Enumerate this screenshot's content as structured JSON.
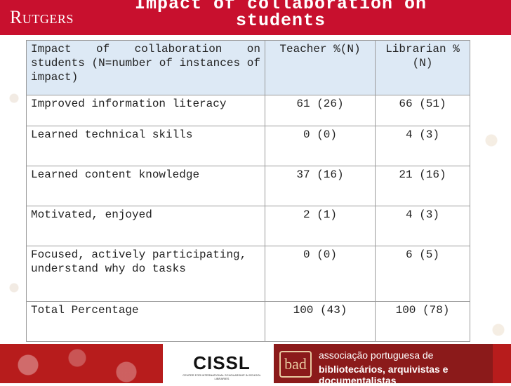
{
  "header": {
    "logo_text": "Rutgers",
    "title": "Impact of collaboration on students"
  },
  "table": {
    "headers": [
      "Impact of collaboration on students (N=number of instances of impact)",
      "Teacher %(N)",
      "Librarian %(N)"
    ],
    "rows": [
      {
        "impact": "Improved information literacy",
        "teacher": "61 (26)",
        "librarian": "66 (51)"
      },
      {
        "impact": "Learned technical skills",
        "teacher": "0 (0)",
        "librarian": "4 (3)"
      },
      {
        "impact": "Learned content knowledge",
        "teacher": "37 (16)",
        "librarian": "21 (16)"
      },
      {
        "impact": "Motivated, enjoyed",
        "teacher": "2 (1)",
        "librarian": "4 (3)"
      },
      {
        "impact": "Focused, actively participating, understand why do tasks",
        "teacher": "0 (0)",
        "librarian": "6 (5)"
      },
      {
        "impact": "Total Percentage",
        "teacher": "100 (43)",
        "librarian": "100 (78)"
      }
    ]
  },
  "footer": {
    "cissl_logo": "CISSL",
    "cissl_subtitle": "CENTER FOR INTERNATIONAL SCHOLARSHIP IN SCHOOL LIBRARIES",
    "apbad_logo": "bad",
    "apbad_line1": "associação portuguesa de",
    "apbad_line2": "bibliotecários, arquivistas e documentalistas"
  },
  "colors": {
    "rutgers_red": "#c8102e",
    "header_cell_bg": "#dde9f5",
    "apbad_red": "#8b1a1a"
  }
}
